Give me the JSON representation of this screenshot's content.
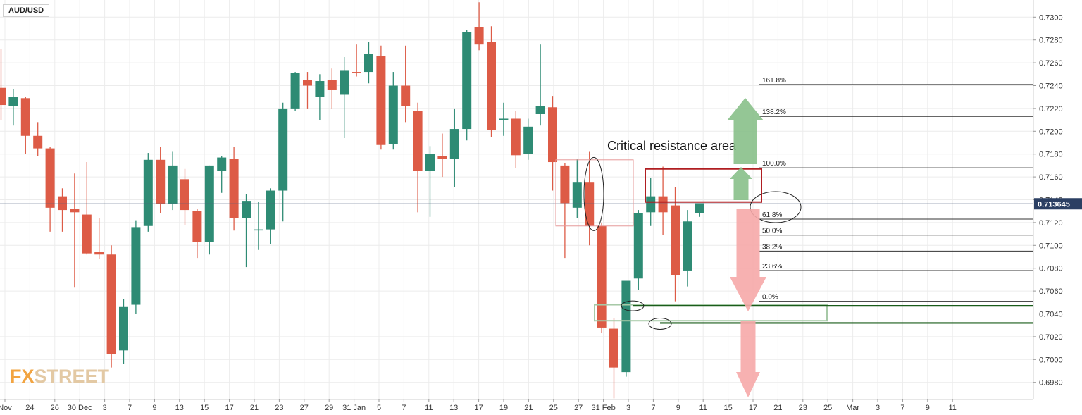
{
  "symbol": "AUD/USD",
  "logo": {
    "part1": "FX",
    "part2": "STREET"
  },
  "colors": {
    "up": "#2e8b74",
    "down": "#dd5b46",
    "bg": "#ffffff",
    "grid": "#ececec",
    "price_line": "#4a5e7e",
    "price_badge": "#2b3f63",
    "resistance": "#b01e22",
    "support": "#1a5c1a",
    "green_arrow": "#88c08a",
    "red_arrow": "#f6a8a8"
  },
  "chart_data": {
    "type": "candlestick",
    "title": "",
    "ylim": [
      0.6965,
      0.7315
    ],
    "y_ticks": [
      "0.6980",
      "0.7000",
      "0.7020",
      "0.7040",
      "0.7060",
      "0.7080",
      "0.7100",
      "0.7120",
      "0.7140",
      "0.7160",
      "0.7180",
      "0.7200",
      "0.7220",
      "0.7240",
      "0.7260",
      "0.7280",
      "0.7300"
    ],
    "x_ticks": [
      "Nov",
      "24",
      "26",
      "30 Dec",
      "3",
      "7",
      "9",
      "13",
      "15",
      "17",
      "21",
      "23",
      "27",
      "29",
      "31 Jan",
      "5",
      "7",
      "11",
      "13",
      "17",
      "19",
      "21",
      "25",
      "27",
      "31 Feb",
      "3",
      "7",
      "9",
      "11",
      "15",
      "17",
      "21",
      "23",
      "25",
      "Mar",
      "3",
      "7",
      "9",
      "11"
    ],
    "current_price": "0.713645",
    "candles": [
      {
        "o": 0.7238,
        "h": 0.7272,
        "l": 0.721,
        "c": 0.7223
      },
      {
        "o": 0.7222,
        "h": 0.7237,
        "l": 0.7205,
        "c": 0.723
      },
      {
        "o": 0.7229,
        "h": 0.723,
        "l": 0.718,
        "c": 0.7196
      },
      {
        "o": 0.7196,
        "h": 0.7208,
        "l": 0.7178,
        "c": 0.7185
      },
      {
        "o": 0.7185,
        "h": 0.7186,
        "l": 0.7112,
        "c": 0.7133
      },
      {
        "o": 0.7143,
        "h": 0.715,
        "l": 0.7112,
        "c": 0.7131
      },
      {
        "o": 0.7132,
        "h": 0.7163,
        "l": 0.7063,
        "c": 0.7129
      },
      {
        "o": 0.7127,
        "h": 0.7173,
        "l": 0.7092,
        "c": 0.7093
      },
      {
        "o": 0.7094,
        "h": 0.7124,
        "l": 0.7088,
        "c": 0.7092
      },
      {
        "o": 0.7092,
        "h": 0.71,
        "l": 0.6993,
        "c": 0.7005
      },
      {
        "o": 0.7008,
        "h": 0.7053,
        "l": 0.6996,
        "c": 0.7046
      },
      {
        "o": 0.7048,
        "h": 0.7122,
        "l": 0.704,
        "c": 0.7116
      },
      {
        "o": 0.7117,
        "h": 0.7181,
        "l": 0.7112,
        "c": 0.7175
      },
      {
        "o": 0.7175,
        "h": 0.7186,
        "l": 0.7128,
        "c": 0.7136
      },
      {
        "o": 0.7136,
        "h": 0.7182,
        "l": 0.7131,
        "c": 0.717
      },
      {
        "o": 0.7158,
        "h": 0.7167,
        "l": 0.7118,
        "c": 0.7131
      },
      {
        "o": 0.713,
        "h": 0.7132,
        "l": 0.7089,
        "c": 0.7103
      },
      {
        "o": 0.7103,
        "h": 0.717,
        "l": 0.7092,
        "c": 0.717
      },
      {
        "o": 0.7165,
        "h": 0.7178,
        "l": 0.7146,
        "c": 0.7177
      },
      {
        "o": 0.7176,
        "h": 0.7186,
        "l": 0.7113,
        "c": 0.7124
      },
      {
        "o": 0.7124,
        "h": 0.7145,
        "l": 0.7081,
        "c": 0.7139
      },
      {
        "o": 0.7114,
        "h": 0.7138,
        "l": 0.7096,
        "c": 0.7114
      },
      {
        "o": 0.7114,
        "h": 0.715,
        "l": 0.7101,
        "c": 0.7148
      },
      {
        "o": 0.7148,
        "h": 0.7225,
        "l": 0.7121,
        "c": 0.722
      },
      {
        "o": 0.722,
        "h": 0.7252,
        "l": 0.7218,
        "c": 0.7251
      },
      {
        "o": 0.7245,
        "h": 0.7252,
        "l": 0.722,
        "c": 0.724
      },
      {
        "o": 0.723,
        "h": 0.725,
        "l": 0.721,
        "c": 0.7244
      },
      {
        "o": 0.7245,
        "h": 0.7255,
        "l": 0.722,
        "c": 0.7236
      },
      {
        "o": 0.7232,
        "h": 0.7265,
        "l": 0.7194,
        "c": 0.7253
      },
      {
        "o": 0.7252,
        "h": 0.7276,
        "l": 0.7248,
        "c": 0.7251
      },
      {
        "o": 0.7252,
        "h": 0.7278,
        "l": 0.7242,
        "c": 0.7268
      },
      {
        "o": 0.7266,
        "h": 0.7275,
        "l": 0.7184,
        "c": 0.7188
      },
      {
        "o": 0.7189,
        "h": 0.7252,
        "l": 0.7184,
        "c": 0.724
      },
      {
        "o": 0.724,
        "h": 0.7275,
        "l": 0.7208,
        "c": 0.7222
      },
      {
        "o": 0.7218,
        "h": 0.7225,
        "l": 0.7129,
        "c": 0.7165
      },
      {
        "o": 0.7165,
        "h": 0.7187,
        "l": 0.7125,
        "c": 0.718
      },
      {
        "o": 0.7178,
        "h": 0.7198,
        "l": 0.716,
        "c": 0.7176
      },
      {
        "o": 0.7176,
        "h": 0.722,
        "l": 0.7151,
        "c": 0.7202
      },
      {
        "o": 0.7202,
        "h": 0.7289,
        "l": 0.7192,
        "c": 0.7287
      },
      {
        "o": 0.7291,
        "h": 0.7313,
        "l": 0.7271,
        "c": 0.7276
      },
      {
        "o": 0.7278,
        "h": 0.7292,
        "l": 0.7195,
        "c": 0.7201
      },
      {
        "o": 0.7211,
        "h": 0.7225,
        "l": 0.7196,
        "c": 0.7211
      },
      {
        "o": 0.7211,
        "h": 0.7218,
        "l": 0.7168,
        "c": 0.7179
      },
      {
        "o": 0.718,
        "h": 0.7211,
        "l": 0.7175,
        "c": 0.7204
      },
      {
        "o": 0.7215,
        "h": 0.7276,
        "l": 0.7205,
        "c": 0.7222
      },
      {
        "o": 0.7221,
        "h": 0.7231,
        "l": 0.7148,
        "c": 0.7173
      },
      {
        "o": 0.717,
        "h": 0.7172,
        "l": 0.7089,
        "c": 0.7137
      },
      {
        "o": 0.7133,
        "h": 0.7176,
        "l": 0.7124,
        "c": 0.7155
      },
      {
        "o": 0.7155,
        "h": 0.7182,
        "l": 0.71,
        "c": 0.7117
      },
      {
        "o": 0.7117,
        "h": 0.712,
        "l": 0.7023,
        "c": 0.7028
      },
      {
        "o": 0.7027,
        "h": 0.7036,
        "l": 0.6966,
        "c": 0.6993
      },
      {
        "o": 0.6989,
        "h": 0.7067,
        "l": 0.6985,
        "c": 0.7069
      },
      {
        "o": 0.7071,
        "h": 0.7131,
        "l": 0.7061,
        "c": 0.7128
      },
      {
        "o": 0.7129,
        "h": 0.7159,
        "l": 0.7117,
        "c": 0.7143
      },
      {
        "o": 0.7143,
        "h": 0.7169,
        "l": 0.7109,
        "c": 0.7129
      },
      {
        "o": 0.7135,
        "h": 0.7151,
        "l": 0.7051,
        "c": 0.7074
      },
      {
        "o": 0.7078,
        "h": 0.7131,
        "l": 0.7064,
        "c": 0.7121
      },
      {
        "o": 0.7128,
        "h": 0.7136,
        "l": 0.7125,
        "c": 0.7137
      }
    ],
    "fibonacci": [
      {
        "label": "161.8%",
        "price": 0.7241
      },
      {
        "label": "138.2%",
        "price": 0.7213
      },
      {
        "label": "100.0%",
        "price": 0.7168
      },
      {
        "label": "61.8%",
        "price": 0.7123
      },
      {
        "label": "50.0%",
        "price": 0.7109
      },
      {
        "label": "38.2%",
        "price": 0.7095
      },
      {
        "label": "23.6%",
        "price": 0.7078
      },
      {
        "label": "0.0%",
        "price": 0.7051
      }
    ],
    "annotations": {
      "resistance_label": "Critical resistance area",
      "resistance_zone": [
        0.7138,
        0.7167
      ],
      "support_lines": [
        0.7047,
        0.7032
      ],
      "support_zone": [
        0.7034,
        0.7048
      ]
    }
  }
}
